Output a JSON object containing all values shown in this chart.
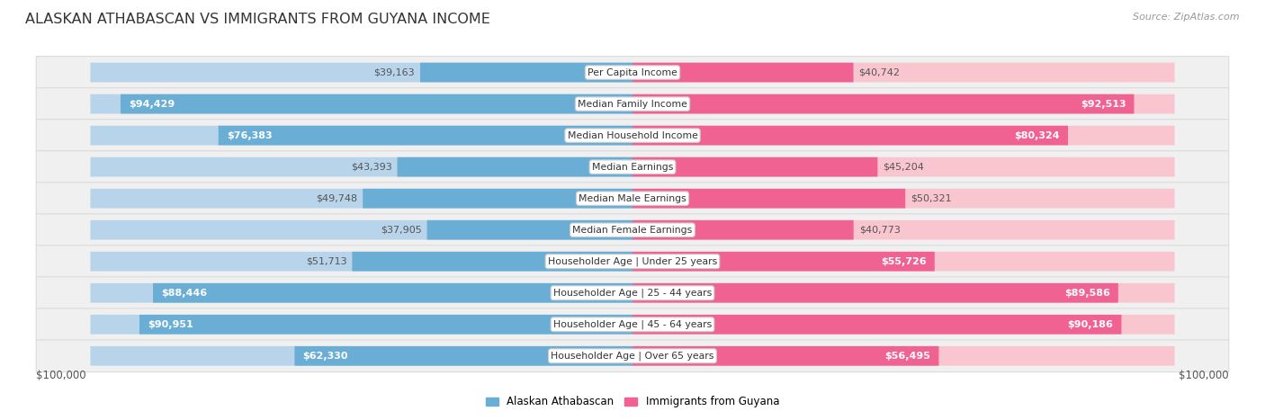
{
  "title": "ALASKAN ATHABASCAN VS IMMIGRANTS FROM GUYANA INCOME",
  "source": "Source: ZipAtlas.com",
  "categories": [
    "Per Capita Income",
    "Median Family Income",
    "Median Household Income",
    "Median Earnings",
    "Median Male Earnings",
    "Median Female Earnings",
    "Householder Age | Under 25 years",
    "Householder Age | 25 - 44 years",
    "Householder Age | 45 - 64 years",
    "Householder Age | Over 65 years"
  ],
  "alaskan_values": [
    39163,
    94429,
    76383,
    43393,
    49748,
    37905,
    51713,
    88446,
    90951,
    62330
  ],
  "guyana_values": [
    40742,
    92513,
    80324,
    45204,
    50321,
    40773,
    55726,
    89586,
    90186,
    56495
  ],
  "alaskan_labels": [
    "$39,163",
    "$94,429",
    "$76,383",
    "$43,393",
    "$49,748",
    "$37,905",
    "$51,713",
    "$88,446",
    "$90,951",
    "$62,330"
  ],
  "guyana_labels": [
    "$40,742",
    "$92,513",
    "$80,324",
    "$45,204",
    "$50,321",
    "$40,773",
    "$55,726",
    "$89,586",
    "$90,186",
    "$56,495"
  ],
  "alaskan_color_light": "#b8d4ea",
  "alaskan_color_dark": "#6aaed6",
  "guyana_color_light": "#f9c6cf",
  "guyana_color_dark": "#f06292",
  "max_value": 100000,
  "row_bg_color": "#f0f0f0",
  "row_border_color": "#d8d8d8",
  "legend_alaskan": "Alaskan Athabascan",
  "legend_guyana": "Immigrants from Guyana",
  "xlabel_left": "$100,000",
  "xlabel_right": "$100,000",
  "label_inside_color": "white",
  "label_outside_color": "#555555",
  "inside_threshold": 55000
}
